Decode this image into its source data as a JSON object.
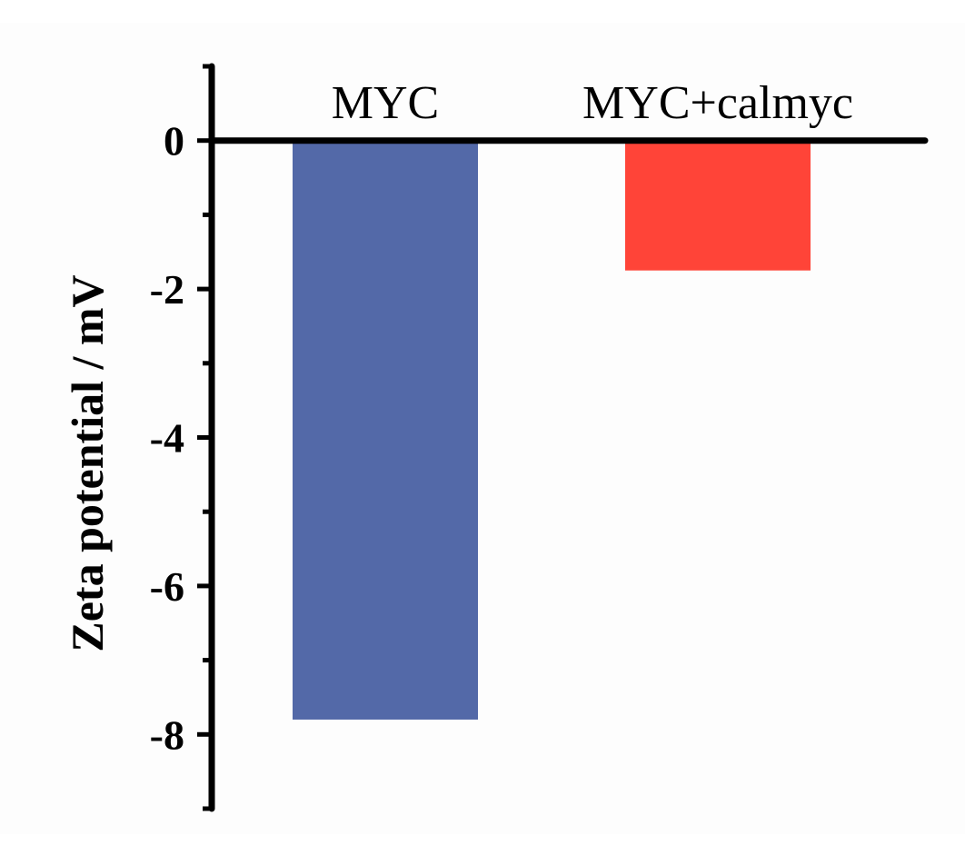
{
  "chart_data": {
    "type": "bar",
    "categories": [
      "MYC",
      "MYC+calmyc"
    ],
    "values": [
      -7.8,
      -1.75
    ],
    "colors": [
      "#5369a8",
      "#ff4438"
    ],
    "title": "",
    "xlabel": "",
    "ylabel": "Zeta potential / mV",
    "ylim": [
      -9,
      1
    ],
    "y_ticks": [
      0,
      -2,
      -4,
      -6,
      -8
    ],
    "y_tick_labels": [
      "0",
      "-2",
      "-4",
      "-6",
      "-8"
    ],
    "minor_tick_step": 1,
    "category_label_position": "top",
    "grid": false,
    "legend": "none"
  }
}
